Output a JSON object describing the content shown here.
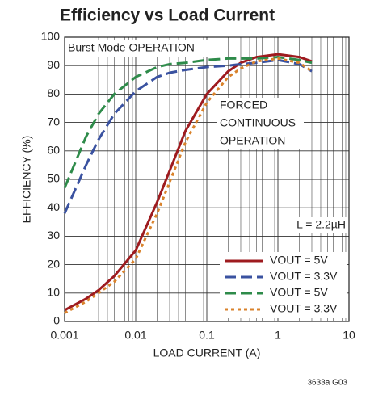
{
  "chart_data": {
    "type": "line",
    "title": "Efficiency vs Load Current",
    "x_label": "LOAD CURRENT (A)",
    "y_label": "EFFICIENCY (%)",
    "annotations": [
      "Burst Mode OPERATION",
      "FORCED",
      "CONTINUOUS",
      "OPERATION",
      "L = 2.2µH"
    ],
    "footnote": "3633a G03",
    "x_log": true,
    "grid": true,
    "legend": "lower right",
    "xlim": [
      0.001,
      10
    ],
    "ylim": [
      0,
      100
    ],
    "xticks": [
      0.001,
      0.01,
      0.1,
      1,
      10
    ],
    "x_minor_ticks": [
      0.002,
      0.003,
      0.004,
      0.005,
      0.006,
      0.007,
      0.008,
      0.009,
      0.02,
      0.03,
      0.04,
      0.05,
      0.06,
      0.07,
      0.08,
      0.09,
      0.2,
      0.3,
      0.4,
      0.5,
      0.6,
      0.7,
      0.8,
      0.9,
      2,
      3,
      4,
      5,
      6,
      7,
      8,
      9
    ],
    "yticks": [
      0,
      10,
      20,
      30,
      40,
      50,
      60,
      70,
      80,
      90,
      100
    ],
    "x": [
      0.001,
      0.002,
      0.003,
      0.005,
      0.01,
      0.02,
      0.03,
      0.05,
      0.1,
      0.2,
      0.3,
      0.5,
      1,
      2,
      3
    ],
    "series": [
      {
        "name": "VOUT = 5V",
        "color": "#9e1b1f",
        "dash": "solid",
        "values": [
          4,
          8,
          11,
          16,
          25,
          42,
          53,
          67,
          80,
          88,
          91,
          93,
          94,
          93,
          91.5
        ]
      },
      {
        "name": "VOUT = 3.3V",
        "color": "#3a52a0",
        "dash": "dashed",
        "values": [
          38,
          55,
          64,
          73,
          81,
          86,
          87.5,
          88.5,
          89.5,
          90,
          90.5,
          91,
          92,
          90.5,
          88
        ]
      },
      {
        "name": "VOUT = 5V",
        "color": "#2e8b4a",
        "dash": "dashed",
        "values": [
          47,
          65,
          73,
          80,
          86,
          89.5,
          90.5,
          91,
          92,
          92.5,
          92.5,
          92.5,
          93,
          92,
          91
        ]
      },
      {
        "name": "VOUT = 3.3V",
        "color": "#d9822b",
        "dash": "dotted",
        "values": [
          3,
          7,
          10,
          14,
          22,
          38,
          49,
          63,
          77,
          86,
          89,
          91.5,
          92.5,
          91,
          88
        ]
      }
    ]
  }
}
